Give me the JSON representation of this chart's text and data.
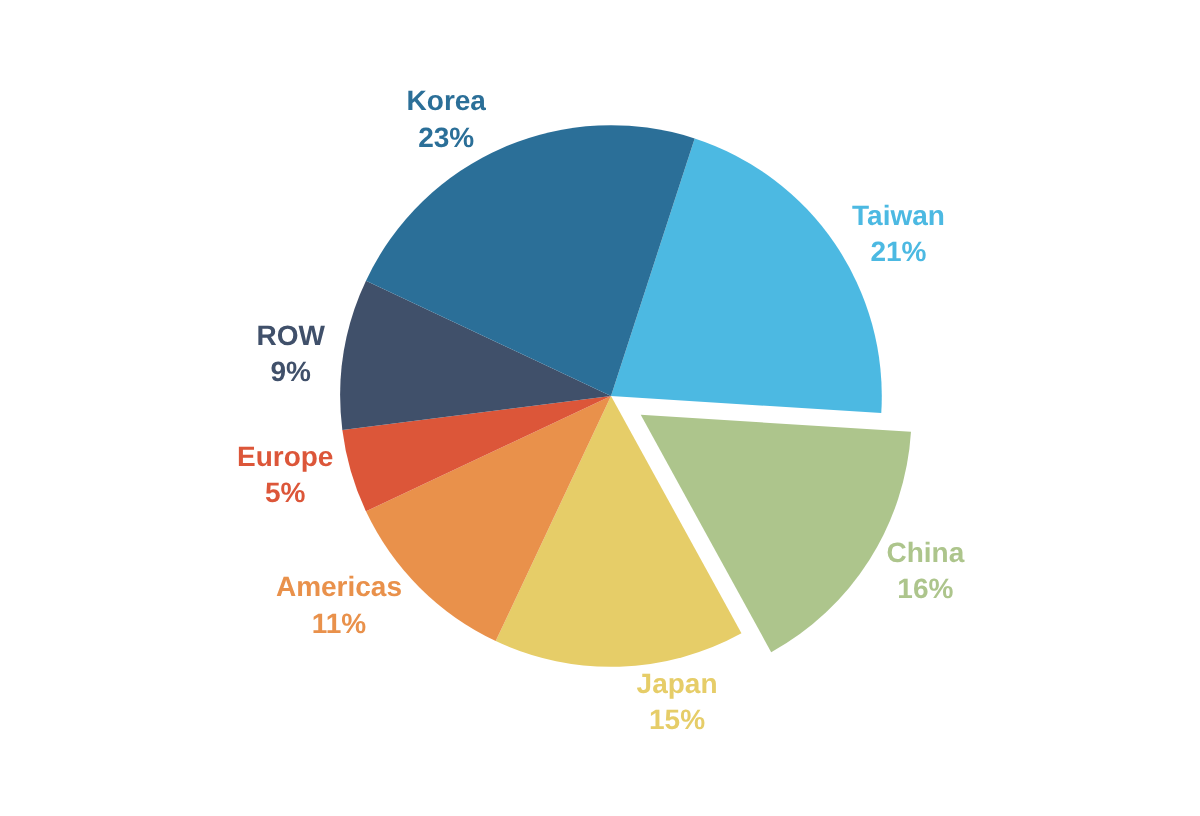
{
  "chart_data": {
    "type": "pie",
    "categories": [
      "Taiwan",
      "China",
      "Japan",
      "Americas",
      "Europe",
      "ROW",
      "Korea"
    ],
    "values": [
      21,
      16,
      15,
      11,
      5,
      9,
      23
    ],
    "value_labels": [
      "21%",
      "16%",
      "15%",
      "11%",
      "5%",
      "9%",
      "23%"
    ],
    "colors": [
      "#4cb9e2",
      "#adc58c",
      "#e6cd68",
      "#e9914b",
      "#dc5639",
      "#40506a",
      "#2b6f98"
    ],
    "legend": false
  }
}
